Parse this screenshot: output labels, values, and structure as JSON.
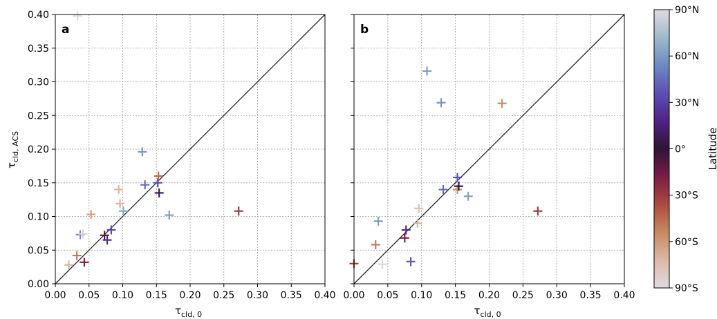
{
  "chart_data": [
    {
      "type": "scatter",
      "panel_label": "a",
      "xlabel_main": "τ",
      "xlabel_sub": "cld, 0",
      "ylabel_main": "τ",
      "ylabel_sub": "cld, ACS",
      "xlim": [
        0,
        0.4
      ],
      "ylim": [
        0,
        0.4
      ],
      "x_ticks": [
        "0.00",
        "0.05",
        "0.10",
        "0.15",
        "0.20",
        "0.25",
        "0.30",
        "0.35",
        "0.40"
      ],
      "y_ticks": [
        "0.00",
        "0.05",
        "0.10",
        "0.15",
        "0.20",
        "0.25",
        "0.30",
        "0.35",
        "0.40"
      ],
      "grid": true,
      "one_to_one_line": true,
      "marker": "plus",
      "points": [
        {
          "x": 0.033,
          "y": 0.398,
          "lat": -88
        },
        {
          "x": 0.02,
          "y": 0.028,
          "lat": -70
        },
        {
          "x": 0.032,
          "y": 0.042,
          "lat": -50
        },
        {
          "x": 0.037,
          "y": 0.073,
          "lat": 55
        },
        {
          "x": 0.041,
          "y": 0.074,
          "lat": -85
        },
        {
          "x": 0.043,
          "y": 0.032,
          "lat": -20
        },
        {
          "x": 0.053,
          "y": 0.103,
          "lat": -63
        },
        {
          "x": 0.073,
          "y": 0.072,
          "lat": -8
        },
        {
          "x": 0.077,
          "y": 0.065,
          "lat": 20
        },
        {
          "x": 0.083,
          "y": 0.08,
          "lat": 32
        },
        {
          "x": 0.094,
          "y": 0.14,
          "lat": -70
        },
        {
          "x": 0.096,
          "y": 0.119,
          "lat": -70
        },
        {
          "x": 0.101,
          "y": 0.108,
          "lat": 65
        },
        {
          "x": 0.129,
          "y": 0.196,
          "lat": 58
        },
        {
          "x": 0.133,
          "y": 0.147,
          "lat": 45
        },
        {
          "x": 0.152,
          "y": 0.15,
          "lat": 35
        },
        {
          "x": 0.153,
          "y": 0.16,
          "lat": -45
        },
        {
          "x": 0.154,
          "y": 0.135,
          "lat": 8
        },
        {
          "x": 0.169,
          "y": 0.102,
          "lat": 62
        },
        {
          "x": 0.272,
          "y": 0.108,
          "lat": -30
        }
      ]
    },
    {
      "type": "scatter",
      "panel_label": "b",
      "xlabel_main": "τ",
      "xlabel_sub": "cld, 0",
      "xlim": [
        0,
        0.4
      ],
      "ylim": [
        0,
        0.4
      ],
      "x_ticks": [
        "0.00",
        "0.05",
        "0.10",
        "0.15",
        "0.20",
        "0.25",
        "0.30",
        "0.35",
        "0.40"
      ],
      "grid": true,
      "one_to_one_line": true,
      "marker": "plus",
      "points": [
        {
          "x": 0.0,
          "y": 0.03,
          "lat": -30
        },
        {
          "x": 0.032,
          "y": 0.058,
          "lat": -50
        },
        {
          "x": 0.036,
          "y": 0.093,
          "lat": 60
        },
        {
          "x": 0.042,
          "y": 0.029,
          "lat": -88
        },
        {
          "x": 0.075,
          "y": 0.068,
          "lat": -18
        },
        {
          "x": 0.077,
          "y": 0.08,
          "lat": 20
        },
        {
          "x": 0.084,
          "y": 0.033,
          "lat": 40
        },
        {
          "x": 0.094,
          "y": 0.09,
          "lat": -70
        },
        {
          "x": 0.096,
          "y": 0.112,
          "lat": -75
        },
        {
          "x": 0.108,
          "y": 0.316,
          "lat": 62
        },
        {
          "x": 0.129,
          "y": 0.269,
          "lat": 58
        },
        {
          "x": 0.132,
          "y": 0.14,
          "lat": 45
        },
        {
          "x": 0.153,
          "y": 0.158,
          "lat": 35
        },
        {
          "x": 0.153,
          "y": 0.14,
          "lat": -55
        },
        {
          "x": 0.155,
          "y": 0.145,
          "lat": 5
        },
        {
          "x": 0.169,
          "y": 0.13,
          "lat": 62
        },
        {
          "x": 0.219,
          "y": 0.268,
          "lat": -55
        },
        {
          "x": 0.272,
          "y": 0.108,
          "lat": -30
        }
      ]
    }
  ],
  "colorbar": {
    "label": "Latitude",
    "ticks": [
      {
        "value": 90,
        "label": "90°N"
      },
      {
        "value": 60,
        "label": "60°N"
      },
      {
        "value": 30,
        "label": "30°N"
      },
      {
        "value": 0,
        "label": "0°"
      },
      {
        "value": -30,
        "label": "30°S"
      },
      {
        "value": -60,
        "label": "60°S"
      },
      {
        "value": -90,
        "label": "90°S"
      }
    ],
    "range": [
      -90,
      90
    ],
    "colors": [
      "#e2d9e2",
      "#9ebbc9",
      "#6a8ac5",
      "#5d4fb4",
      "#4e2387",
      "#2f1436",
      "#7a1d46",
      "#ab4b3f",
      "#c9895e",
      "#dbbaa6",
      "#e2d9e2"
    ]
  }
}
